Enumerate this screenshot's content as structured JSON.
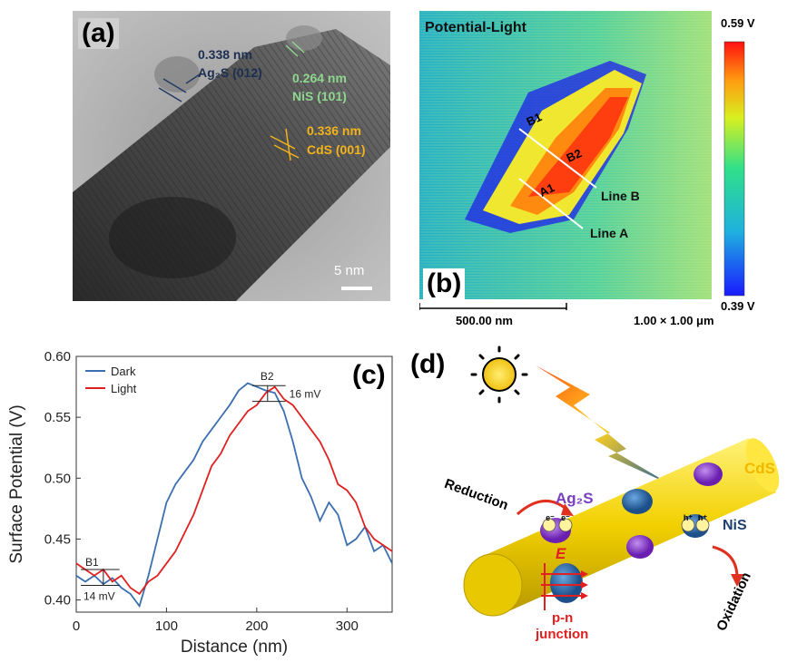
{
  "panels": {
    "a": {
      "label": "(a)",
      "lattice": [
        {
          "spacing": "0.338 nm",
          "phase": "Ag₂S (012)"
        },
        {
          "spacing": "0.264 nm",
          "phase": "NiS (101)"
        },
        {
          "spacing": "0.336 nm",
          "phase": "CdS (001)"
        }
      ],
      "scale_bar": "5 nm"
    },
    "b": {
      "label": "(b)",
      "title": "Potential-Light",
      "colorbar_max": "0.59 V",
      "colorbar_min": "0.39 V",
      "markers": [
        "B1",
        "B2",
        "A1"
      ],
      "lines": [
        "Line B",
        "Line A"
      ],
      "scale_bar": "500.00 nm",
      "scan_size": "1.00 × 1.00 μm"
    },
    "c": {
      "label": "(c)",
      "annotations": {
        "b1": "B1",
        "b2": "B2",
        "dv_b1": "14 mV",
        "dv_b2": "16 mV"
      }
    },
    "d": {
      "label": "(d)",
      "labels": {
        "cds": "CdS",
        "ag2s": "Ag₂S",
        "nis": "NiS",
        "reduction": "Reduction",
        "oxidation": "Oxidation",
        "field": "E",
        "junction_1": "p-n",
        "junction_2": "junction",
        "electron": "e⁻",
        "hole": "h⁺"
      }
    }
  },
  "chart_data": {
    "type": "line",
    "xlabel": "Distance (nm)",
    "ylabel": "Surface Potential (V)",
    "xlim": [
      0,
      350
    ],
    "ylim": [
      0.39,
      0.6
    ],
    "xticks": [
      0,
      100,
      200,
      300
    ],
    "yticks": [
      0.4,
      0.45,
      0.5,
      0.55,
      0.6
    ],
    "legend_position": "top-left",
    "series": [
      {
        "name": "Dark",
        "color": "#3a6fb0",
        "x": [
          0,
          10,
          20,
          30,
          40,
          50,
          60,
          70,
          80,
          90,
          100,
          110,
          120,
          130,
          140,
          150,
          160,
          170,
          180,
          190,
          200,
          210,
          220,
          230,
          240,
          250,
          260,
          270,
          280,
          290,
          300,
          310,
          320,
          330,
          340,
          350
        ],
        "y": [
          0.42,
          0.415,
          0.42,
          0.413,
          0.418,
          0.41,
          0.405,
          0.395,
          0.42,
          0.45,
          0.48,
          0.495,
          0.505,
          0.515,
          0.53,
          0.54,
          0.55,
          0.56,
          0.572,
          0.578,
          0.575,
          0.572,
          0.57,
          0.555,
          0.53,
          0.5,
          0.485,
          0.465,
          0.48,
          0.47,
          0.445,
          0.45,
          0.46,
          0.44,
          0.445,
          0.43
        ]
      },
      {
        "name": "Light",
        "color": "#e02020",
        "x": [
          0,
          10,
          20,
          30,
          40,
          50,
          60,
          70,
          80,
          90,
          100,
          110,
          120,
          130,
          140,
          150,
          160,
          170,
          180,
          190,
          200,
          210,
          220,
          230,
          240,
          250,
          260,
          270,
          280,
          290,
          300,
          310,
          320,
          330,
          340,
          350
        ],
        "y": [
          0.43,
          0.425,
          0.42,
          0.425,
          0.415,
          0.42,
          0.41,
          0.405,
          0.415,
          0.42,
          0.43,
          0.44,
          0.455,
          0.47,
          0.49,
          0.51,
          0.52,
          0.535,
          0.545,
          0.555,
          0.56,
          0.57,
          0.575,
          0.565,
          0.56,
          0.55,
          0.54,
          0.53,
          0.515,
          0.495,
          0.49,
          0.48,
          0.46,
          0.45,
          0.445,
          0.44
        ]
      }
    ]
  }
}
